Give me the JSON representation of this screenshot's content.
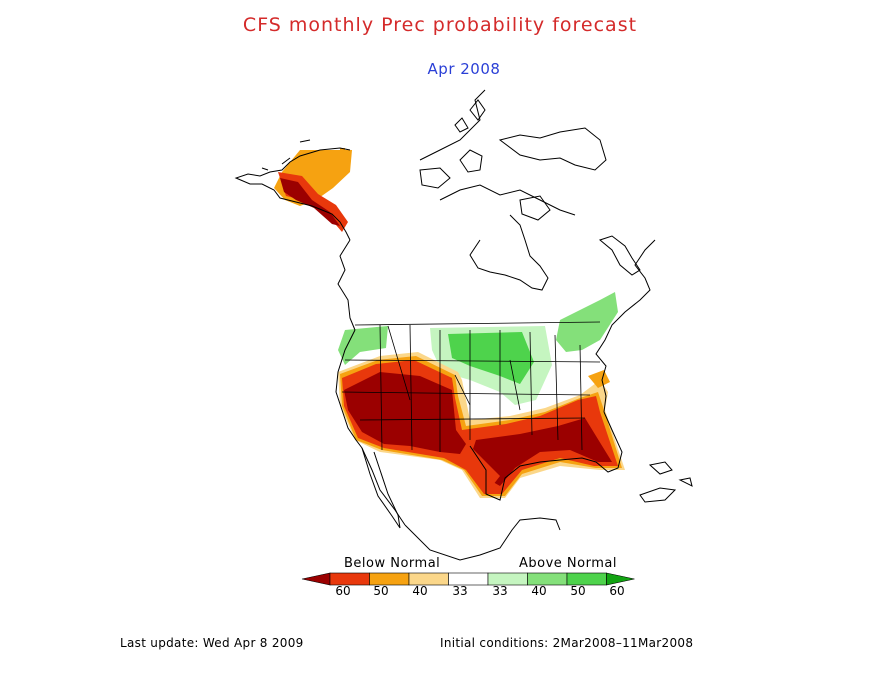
{
  "title": "CFS monthly Prec probability forecast",
  "subtitle": "Apr 2008",
  "legend": {
    "below_label": "Below Normal",
    "above_label": "Above Normal",
    "ticks": [
      "60",
      "50",
      "40",
      "33",
      "33",
      "40",
      "50",
      "60"
    ],
    "colors": [
      "#9b0000",
      "#e8380c",
      "#f6a211",
      "#fbd78a",
      "#ffffff",
      "#c5f5c0",
      "#84e07a",
      "#4ed34c",
      "#12a312"
    ]
  },
  "footer": {
    "last_update": "Last update: Wed Apr 8 2009",
    "initial_conditions": "Initial conditions: 2Mar2008–11Mar2008"
  }
}
